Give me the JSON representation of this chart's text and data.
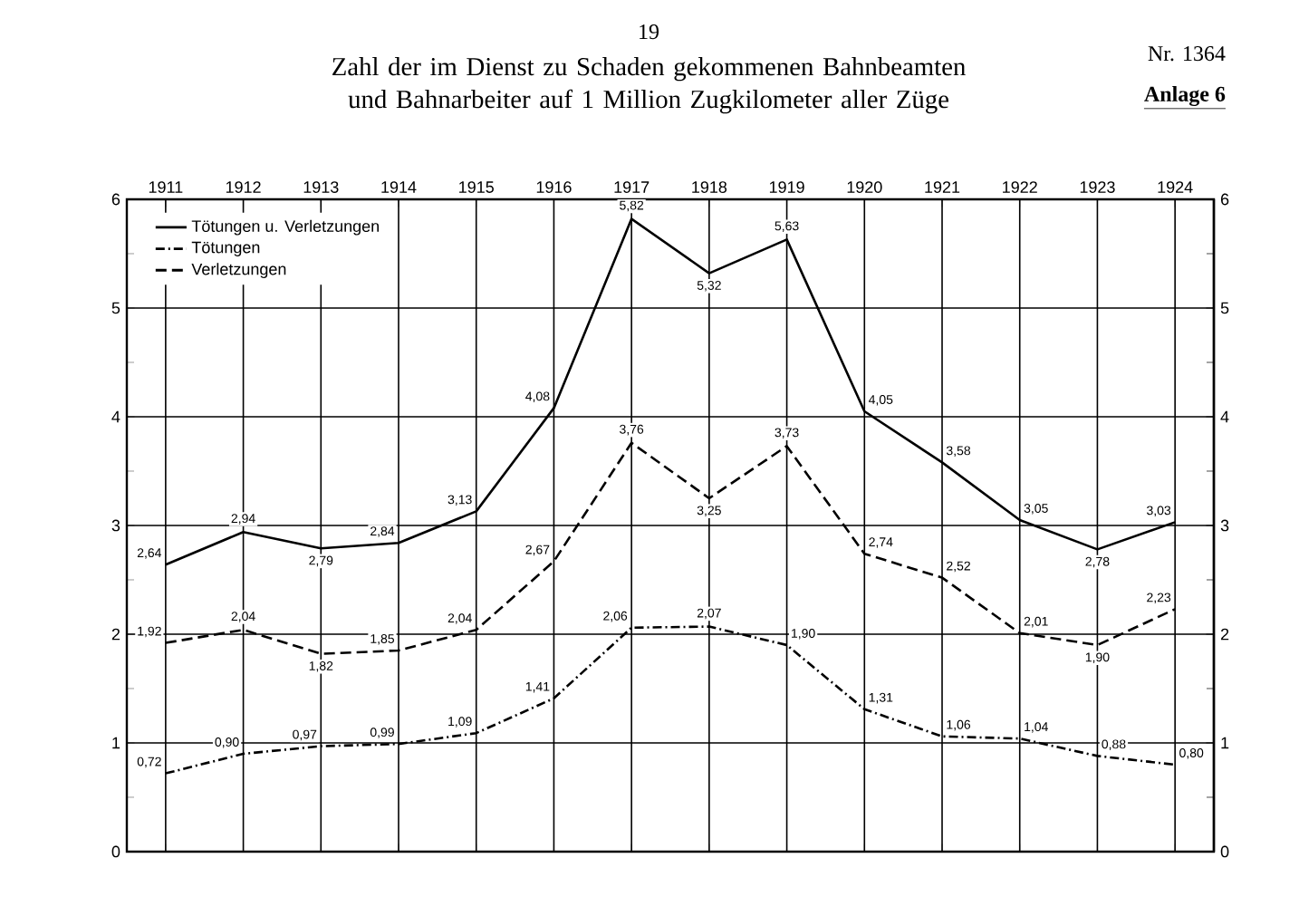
{
  "chart_data": {
    "type": "line",
    "title": "Zahl der im Dienst zu Schaden gekommenen Bahnbeamten und Bahnarbeiter auf 1 Million Zugkilometer aller Züge",
    "annotations": [
      "Nr. 1364",
      "Anlage 6",
      "19"
    ],
    "categories": [
      "1911",
      "1912",
      "1913",
      "1914",
      "1915",
      "1916",
      "1917",
      "1918",
      "1919",
      "1920",
      "1921",
      "1922",
      "1923",
      "1924"
    ],
    "series": [
      {
        "name": "Tötungen u. Verletzungen",
        "color": "#000000",
        "line_style": "solid",
        "values": [
          2.64,
          2.94,
          2.79,
          2.84,
          3.13,
          4.08,
          5.82,
          5.32,
          5.63,
          4.05,
          3.58,
          3.05,
          2.78,
          3.03
        ],
        "value_labels": [
          "2,64",
          "2,94",
          "2,79",
          "2,84",
          "3,13",
          "4,08",
          "5,82",
          "5,32",
          "5,63",
          "4,05",
          "3,58",
          "3,05",
          "2,78",
          "3,03"
        ]
      },
      {
        "name": "Tötungen",
        "color": "#000000",
        "line_style": "dashdot",
        "values": [
          0.72,
          0.9,
          0.97,
          0.99,
          1.09,
          1.41,
          2.06,
          2.07,
          1.9,
          1.31,
          1.06,
          1.04,
          0.88,
          0.8
        ],
        "value_labels": [
          "0,72",
          "0,90",
          "0,97",
          "0,99",
          "1,09",
          "1,41",
          "2,06",
          "2,07",
          "1,90",
          "1,31",
          "1,06",
          "1,04",
          "0,88",
          "0,80"
        ]
      },
      {
        "name": "Verletzungen",
        "color": "#000000",
        "line_style": "dashed",
        "values": [
          1.92,
          2.04,
          1.82,
          1.85,
          2.04,
          2.67,
          3.76,
          3.25,
          3.73,
          2.74,
          2.52,
          2.01,
          1.9,
          2.23
        ],
        "value_labels": [
          "1,92",
          "2,04",
          "1,82",
          "1,85",
          "2,04",
          "2,67",
          "3,76",
          "3,25",
          "3,73",
          "2,74",
          "2,52",
          "2,01",
          "1,90",
          "2,23"
        ]
      }
    ],
    "ylim": [
      0,
      6
    ],
    "yticks": [
      0,
      {
        "value": 0.5,
        "label": null
      },
      1,
      {
        "value": 1.5,
        "label": null
      },
      2,
      {
        "value": 2.5,
        "label": null
      },
      3,
      {
        "value": 3.5,
        "label": null
      },
      4,
      {
        "value": 4.5,
        "label": null
      },
      5,
      {
        "value": 5.5,
        "label": null
      },
      6
    ],
    "y2lim": [
      0,
      6
    ],
    "y2ticks": [
      0,
      {
        "value": 0.5,
        "label": null
      },
      1,
      {
        "value": 1.5,
        "label": null
      },
      2,
      {
        "value": 2.5,
        "label": null
      },
      3,
      {
        "value": 3.5,
        "label": null
      },
      4,
      {
        "value": 4.5,
        "label": null
      },
      5,
      {
        "value": 5.5,
        "label": null
      },
      6
    ],
    "grid": true,
    "legend": "top left"
  }
}
